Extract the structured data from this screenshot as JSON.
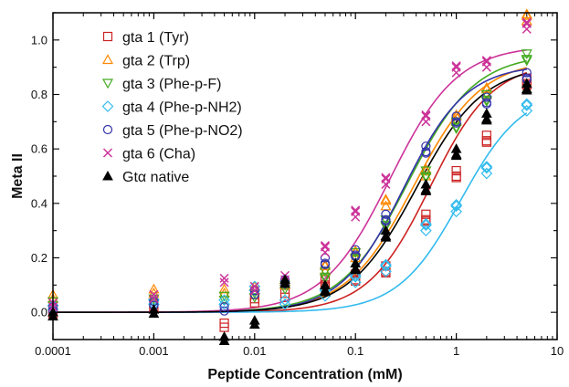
{
  "chart_data": {
    "type": "scatter",
    "title": "",
    "xlabel": "Peptide Concentration (mM)",
    "ylabel": "Meta II",
    "x_scale": "log",
    "xlim": [
      0.0001,
      10
    ],
    "ylim": [
      -0.1,
      1.1
    ],
    "x_ticks": [
      "0.0001",
      "0.001",
      "0.01",
      "0.1",
      "1",
      "10"
    ],
    "y_ticks": [
      "0.0",
      "0.2",
      "0.4",
      "0.6",
      "0.8",
      "1.0"
    ],
    "grid": false,
    "legend_position": "top-left",
    "x": [
      0.0001,
      0.001,
      0.005,
      0.01,
      0.02,
      0.05,
      0.1,
      0.2,
      0.5,
      1,
      2,
      5
    ],
    "series": [
      {
        "name": "gta 1 (Tyr)",
        "marker": "square",
        "color": "#cc2222",
        "values": [
          0.01,
          0.03,
          -0.04,
          0.05,
          0.07,
          0.12,
          0.14,
          0.17,
          0.36,
          0.52,
          0.65,
          0.86
        ],
        "curve": {
          "top": 0.92,
          "ec50": 0.55,
          "hill": 1.4
        }
      },
      {
        "name": "gta 2 (Trp)",
        "marker": "triangle-up",
        "color": "#ff8800",
        "values": [
          0.05,
          0.07,
          0.07,
          0.08,
          0.1,
          0.15,
          0.2,
          0.39,
          0.5,
          0.7,
          0.8,
          1.07
        ],
        "curve": {
          "top": 0.93,
          "ec50": 0.38,
          "hill": 1.3
        }
      },
      {
        "name": "gta 3 (Phe-p-F)",
        "marker": "triangle-down",
        "color": "#44aa22",
        "values": [
          0.04,
          0.05,
          0.06,
          0.07,
          0.1,
          0.15,
          0.22,
          0.34,
          0.52,
          0.7,
          0.8,
          0.95
        ],
        "curve": {
          "top": 0.95,
          "ec50": 0.33,
          "hill": 1.3
        }
      },
      {
        "name": "gta 4 (Phe-p-NH2)",
        "marker": "diamond",
        "color": "#33bbee",
        "values": [
          0.01,
          0.03,
          0.03,
          0.08,
          0.03,
          0.06,
          0.11,
          0.15,
          0.3,
          0.37,
          0.51,
          0.74
        ],
        "curve": {
          "top": 0.82,
          "ec50": 1.1,
          "hill": 1.4
        }
      },
      {
        "name": "gta 5 (Phe-p-NO2)",
        "marker": "circle",
        "color": "#3333aa",
        "values": [
          0.02,
          0.04,
          0.02,
          0.08,
          0.12,
          0.2,
          0.23,
          0.36,
          0.61,
          0.72,
          0.79,
          0.88
        ],
        "curve": {
          "top": 0.91,
          "ec50": 0.3,
          "hill": 1.4
        }
      },
      {
        "name": "gta 6 (Cha)",
        "marker": "x",
        "color": "#cc3399",
        "values": [
          0.02,
          0.05,
          0.11,
          0.08,
          0.12,
          0.22,
          0.35,
          0.47,
          0.7,
          0.88,
          0.9,
          1.04
        ],
        "curve": {
          "top": 0.98,
          "ec50": 0.22,
          "hill": 1.3
        }
      },
      {
        "name": "Gtα native",
        "marker": "triangle-up-filled",
        "color": "#000000",
        "values": [
          0.0,
          0.01,
          -0.09,
          -0.03,
          0.12,
          0.1,
          0.18,
          0.3,
          0.47,
          0.6,
          0.73,
          0.84
        ],
        "curve": {
          "top": 0.91,
          "ec50": 0.4,
          "hill": 1.3
        }
      }
    ]
  }
}
